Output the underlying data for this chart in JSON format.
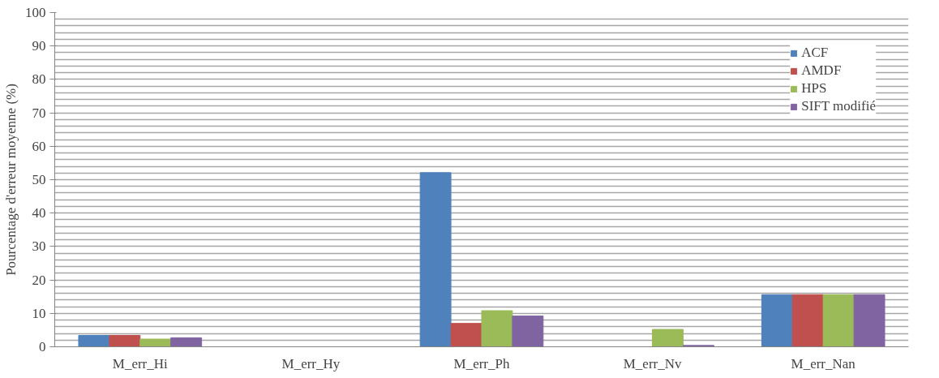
{
  "chart_data": {
    "type": "bar",
    "ylabel": "Pourcentage d'erreur moyenne (%)",
    "categories": [
      "M_err_Hi",
      "M_err_Hy",
      "M_err_Ph",
      "M_err_Nv",
      "M_err_Nan"
    ],
    "series": [
      {
        "name": "ACF",
        "color": "#4f81bd",
        "values": [
          3.4,
          0,
          52.1,
          0,
          15.6
        ]
      },
      {
        "name": "AMDF",
        "color": "#c0504d",
        "values": [
          3.4,
          0,
          7.0,
          0,
          15.6
        ]
      },
      {
        "name": "HPS",
        "color": "#9bbb59",
        "values": [
          2.3,
          0,
          10.8,
          5.2,
          15.6
        ]
      },
      {
        "name": "SIFT modifié",
        "color": "#8064a2",
        "values": [
          2.7,
          0,
          9.2,
          0.4,
          15.6
        ]
      }
    ],
    "ylim": [
      0,
      100
    ],
    "yticks": [
      0,
      10,
      20,
      30,
      40,
      50,
      60,
      70,
      80,
      90,
      100
    ],
    "grid": "y",
    "legend": "top right"
  }
}
